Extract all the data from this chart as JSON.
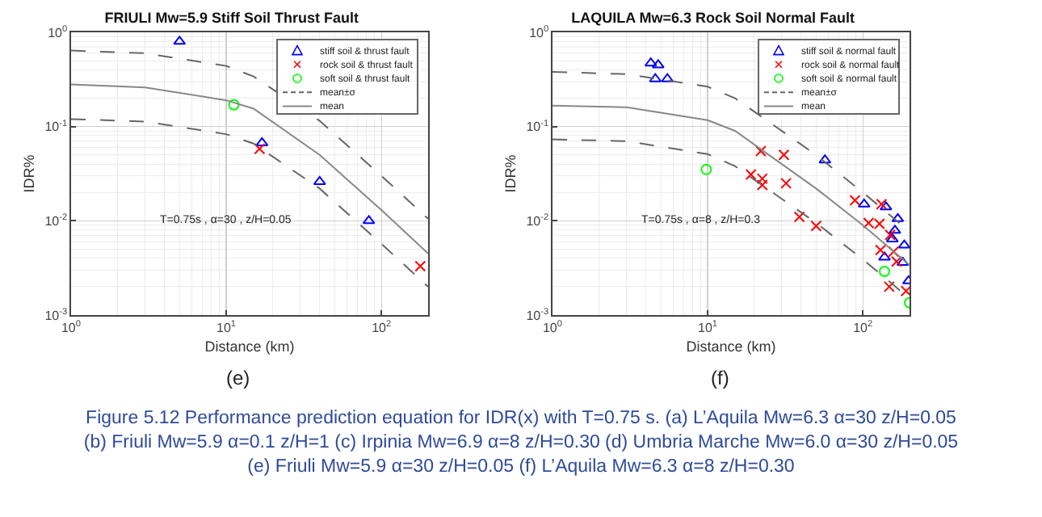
{
  "chart_data": [
    {
      "type": "scatter",
      "title": "FRIULI Mw=5.9 Stiff Soil Thrust Fault",
      "xlabel": "Distance (km)",
      "ylabel": "IDR%",
      "log": "xy",
      "grid": true,
      "legend": "top right",
      "xlim": [
        1,
        200
      ],
      "ylim": [
        0.001,
        1
      ],
      "xticks": [
        {
          "value": 1,
          "label": "10$^{0}$"
        },
        {
          "value": 10,
          "label": "10$^{1}$"
        },
        {
          "value": 100,
          "label": "10$^{2}$"
        }
      ],
      "yticks": [
        {
          "value": 0.001,
          "label": "10$^{-3}$"
        },
        {
          "value": 0.01,
          "label": "10$^{-2}$"
        },
        {
          "value": 0.1,
          "label": "10$^{-1}$"
        },
        {
          "value": 1,
          "label": "10$^{0}$"
        }
      ],
      "annotations": [
        "T=0.75s , α=30 , z/H=0.05",
        "(e)"
      ],
      "series": [
        {
          "name": "stiff soil & thrust fault",
          "color": "#0000ff",
          "marker": "triangle",
          "x": [
            5,
            17,
            40,
            83
          ],
          "values": [
            0.8,
            0.067,
            0.026,
            0.01
          ]
        },
        {
          "name": "rock soil & thrust fault",
          "color": "#ff0000",
          "marker": "cross",
          "x": [
            16.4,
            178
          ],
          "values": [
            0.058,
            0.0033
          ]
        },
        {
          "name": "soft soil & thrust fault",
          "color": "#00ff00",
          "marker": "circle",
          "x": [
            11.2
          ],
          "values": [
            0.17
          ]
        },
        {
          "name": "mean±σ",
          "type": "line",
          "color": "#666666",
          "marker": "none",
          "line_style": "dashed",
          "x": [
            1,
            3,
            10,
            15,
            40,
            100,
            200
          ],
          "values": [
            0.64,
            0.6,
            0.44,
            0.34,
            0.115,
            0.03,
            0.0105
          ]
        },
        {
          "type": "line",
          "color": "#666666",
          "marker": "none",
          "line_style": "dashed",
          "x": [
            1,
            3,
            10,
            15,
            40,
            100,
            200
          ],
          "values": [
            0.12,
            0.113,
            0.083,
            0.066,
            0.022,
            0.0057,
            0.002
          ]
        },
        {
          "name": "mean",
          "type": "line",
          "color": "#888888",
          "marker": "none",
          "line_style": "solid",
          "x": [
            1,
            3,
            10,
            15,
            40,
            100,
            200
          ],
          "values": [
            0.28,
            0.26,
            0.19,
            0.155,
            0.05,
            0.013,
            0.0045
          ]
        }
      ]
    },
    {
      "type": "scatter",
      "title": "LAQUILA Mw=6.3 Rock Soil Normal Fault",
      "xlabel": "Distance (km)",
      "ylabel": "IDR%",
      "log": "xy",
      "grid": true,
      "legend": "top right",
      "xlim": [
        1,
        200
      ],
      "ylim": [
        0.001,
        1
      ],
      "xticks": [
        {
          "value": 1,
          "label": "10$^{0}$"
        },
        {
          "value": 10,
          "label": "10$^{1}$"
        },
        {
          "value": 100,
          "label": "10$^{2}$"
        }
      ],
      "yticks": [
        {
          "value": 0.001,
          "label": "10$^{-3}$"
        },
        {
          "value": 0.01,
          "label": "10$^{-2}$"
        },
        {
          "value": 0.1,
          "label": "10$^{-1}$"
        },
        {
          "value": 1,
          "label": "10$^{0}$"
        }
      ],
      "annotations": [
        "T=0.75s , α=8 , z/H=0.3",
        "(f)"
      ],
      "series": [
        {
          "name": "stiff soil & normal fault",
          "color": "#0000ff",
          "marker": "triangle",
          "x": [
            4.3,
            4.8,
            4.6,
            5.5,
            57,
            102,
            141,
            168,
            161,
            155,
            185,
            138,
            181,
            197
          ],
          "values": [
            0.47,
            0.45,
            0.32,
            0.32,
            0.044,
            0.015,
            0.014,
            0.0105,
            0.0079,
            0.0064,
            0.0055,
            0.0041,
            0.0036,
            0.0023
          ]
        },
        {
          "name": "rock soil & normal fault",
          "color": "#ff0000",
          "marker": "cross",
          "x": [
            22,
            31,
            19,
            22.5,
            22.5,
            32,
            39,
            50,
            89,
            109,
            128,
            132,
            130,
            150,
            158,
            165,
            148,
            190
          ],
          "values": [
            0.055,
            0.05,
            0.031,
            0.028,
            0.024,
            0.025,
            0.011,
            0.0088,
            0.0165,
            0.0095,
            0.0093,
            0.015,
            0.0049,
            0.0071,
            0.0047,
            0.0037,
            0.002,
            0.0018
          ]
        },
        {
          "name": "soft soil & normal fault",
          "color": "#00ff00",
          "marker": "circle",
          "x": [
            9.8,
            138,
            200
          ],
          "values": [
            0.035,
            0.0029,
            0.00135
          ]
        },
        {
          "name": "mean±σ",
          "type": "line",
          "color": "#666666",
          "marker": "none",
          "line_style": "dashed",
          "x": [
            1,
            3,
            10,
            15,
            50,
            100,
            200
          ],
          "values": [
            0.38,
            0.36,
            0.265,
            0.2,
            0.05,
            0.02,
            0.0077
          ]
        },
        {
          "type": "line",
          "color": "#666666",
          "marker": "none",
          "line_style": "dashed",
          "x": [
            1,
            3,
            10,
            15,
            50,
            100,
            200
          ],
          "values": [
            0.073,
            0.07,
            0.051,
            0.038,
            0.0095,
            0.0039,
            0.0015
          ]
        },
        {
          "name": "mean",
          "type": "line",
          "color": "#888888",
          "marker": "none",
          "line_style": "solid",
          "x": [
            1,
            3,
            10,
            15,
            50,
            100,
            200
          ],
          "values": [
            0.167,
            0.16,
            0.117,
            0.09,
            0.022,
            0.009,
            0.0034
          ]
        }
      ]
    },
    {
      "type": "other",
      "annotations": [
        "Figure 5.12 Performance prediction equation for IDR(x) with T=0.75 s. (a) L’Aquila Mw=6.3 α=30 z/H=0.05",
        "(b) Friuli Mw=5.9 α=0.1 z/H=1 (c) Irpinia Mw=6.9 α=8 z/H=0.30 (d) Umbria Marche Mw=6.0  α=30 z/H=0.05",
        "(e) Friuli Mw=5.9 α=30 z/H=0.05  (f) L’Aquila Mw=6.3 α=8 z/H=0.30"
      ]
    }
  ]
}
